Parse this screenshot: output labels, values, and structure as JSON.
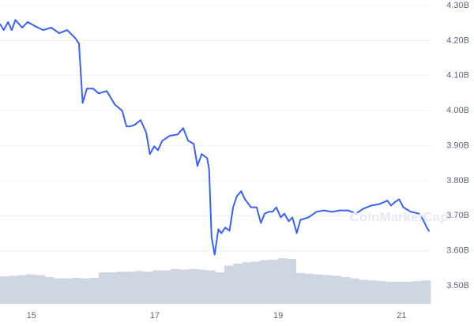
{
  "chart_data": {
    "type": "line",
    "watermark": "CoinMarketCap",
    "x": [
      14.49,
      14.55,
      14.62,
      14.68,
      14.74,
      14.85,
      14.94,
      15.06,
      15.19,
      15.32,
      15.45,
      15.58,
      15.71,
      15.77,
      15.83,
      15.9,
      16.0,
      16.09,
      16.22,
      16.35,
      16.47,
      16.54,
      16.6,
      16.67,
      16.77,
      16.86,
      16.92,
      16.99,
      17.05,
      17.12,
      17.24,
      17.37,
      17.46,
      17.54,
      17.63,
      17.69,
      17.76,
      17.85,
      17.88,
      17.92,
      17.97,
      18.03,
      18.08,
      18.14,
      18.21,
      18.27,
      18.33,
      18.4,
      18.46,
      18.56,
      18.65,
      18.72,
      18.78,
      18.85,
      18.91,
      18.97,
      19.04,
      19.1,
      19.17,
      19.23,
      19.3,
      19.36,
      19.49,
      19.62,
      19.74,
      19.87,
      20.0,
      20.13,
      20.26,
      20.38,
      20.51,
      20.64,
      20.77,
      20.83,
      20.9,
      20.96,
      21.03,
      21.15,
      21.28,
      21.35,
      21.41,
      21.45
    ],
    "series": [
      {
        "color": "#3861fb",
        "values": [
          4.248,
          4.23,
          4.253,
          4.23,
          4.259,
          4.237,
          4.253,
          4.241,
          4.23,
          4.237,
          4.221,
          4.23,
          4.207,
          4.192,
          4.022,
          4.063,
          4.063,
          4.049,
          4.056,
          4.018,
          4.0,
          3.955,
          3.955,
          3.959,
          3.973,
          3.937,
          3.876,
          3.898,
          3.887,
          3.914,
          3.928,
          3.932,
          3.95,
          3.914,
          3.905,
          3.842,
          3.876,
          3.864,
          3.831,
          3.639,
          3.589,
          3.661,
          3.65,
          3.666,
          3.657,
          3.724,
          3.756,
          3.77,
          3.747,
          3.724,
          3.724,
          3.679,
          3.706,
          3.711,
          3.711,
          3.724,
          3.695,
          3.706,
          3.684,
          3.695,
          3.65,
          3.688,
          3.695,
          3.711,
          3.715,
          3.711,
          3.715,
          3.715,
          3.706,
          3.72,
          3.729,
          3.733,
          3.743,
          3.729,
          3.74,
          3.747,
          3.724,
          3.711,
          3.706,
          3.688,
          3.666,
          3.655
        ]
      }
    ],
    "volume": {
      "color": "#cfd5e2",
      "ylim": [
        0,
        100
      ],
      "values": [
        41,
        42,
        43,
        44,
        43,
        40,
        38,
        38,
        39,
        38,
        39,
        47,
        47,
        48,
        48,
        49,
        48,
        50,
        50,
        52,
        51,
        52,
        51,
        50,
        47,
        57,
        60,
        62,
        63,
        65,
        66,
        68,
        67,
        46,
        45,
        44,
        43,
        42,
        40,
        38,
        36,
        35,
        34,
        33,
        33,
        33,
        34,
        35
      ]
    },
    "xlim": [
      14.49,
      21.47
    ],
    "xticks": [
      15,
      17,
      19,
      21
    ],
    "ylim": [
      3.448,
      4.316
    ],
    "yticks": [
      {
        "value": 3.5,
        "label": "3.50B"
      },
      {
        "value": 3.6,
        "label": "3.60B"
      },
      {
        "value": 3.7,
        "label": "3.70B"
      },
      {
        "value": 3.8,
        "label": "3.80B"
      },
      {
        "value": 3.9,
        "label": "3.90B"
      },
      {
        "value": 4.0,
        "label": "4.00B"
      },
      {
        "value": 4.1,
        "label": "4.10B"
      },
      {
        "value": 4.2,
        "label": "4.20B"
      },
      {
        "value": 4.3,
        "label": "4.30B"
      }
    ],
    "grid": true
  }
}
